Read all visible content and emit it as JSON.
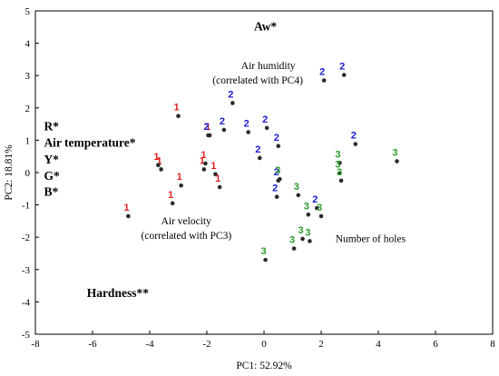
{
  "chart_data": {
    "type": "scatter",
    "xlabel": "PC1: 52.92%",
    "ylabel": "PC2: 18.81%",
    "xlim": [
      -8,
      8
    ],
    "ylim": [
      -5,
      5
    ],
    "x_ticks": [
      "-8",
      "-6",
      "-4",
      "-2",
      "0",
      "2",
      "4",
      "6",
      "8"
    ],
    "y_ticks": [
      "-5",
      "-4",
      "-3",
      "-2",
      "-1",
      "0",
      "1",
      "2",
      "3",
      "4",
      "5"
    ],
    "grid": false,
    "point_color": "#2b2b2b",
    "group_colors": {
      "1": "#e02020",
      "2": "#1a1ad0",
      "3": "#2a9a2a"
    },
    "points": [
      {
        "x": -4.75,
        "y": -1.35,
        "label": "1"
      },
      {
        "x": -3.6,
        "y": 0.1,
        "label": "1"
      },
      {
        "x": -3.7,
        "y": 0.23,
        "label": "1"
      },
      {
        "x": -3.2,
        "y": -0.95,
        "label": "1"
      },
      {
        "x": -2.9,
        "y": -0.4,
        "label": "1"
      },
      {
        "x": -3.0,
        "y": 1.75,
        "label": "1"
      },
      {
        "x": -2.1,
        "y": 0.1,
        "label": "1"
      },
      {
        "x": -2.05,
        "y": 0.28,
        "label": "1"
      },
      {
        "x": -1.9,
        "y": 1.15,
        "label": "1"
      },
      {
        "x": -1.7,
        "y": -0.05,
        "label": "1"
      },
      {
        "x": -1.55,
        "y": -0.45,
        "label": "1"
      },
      {
        "x": -1.95,
        "y": 1.15,
        "label": "2"
      },
      {
        "x": -1.4,
        "y": 1.32,
        "label": "2"
      },
      {
        "x": -1.1,
        "y": 2.15,
        "label": "2"
      },
      {
        "x": -0.55,
        "y": 1.25,
        "label": "2"
      },
      {
        "x": -0.15,
        "y": 0.45,
        "label": "2"
      },
      {
        "x": 0.1,
        "y": 1.38,
        "label": "2"
      },
      {
        "x": 0.5,
        "y": 0.82,
        "label": "2"
      },
      {
        "x": 0.5,
        "y": -0.25,
        "label": "2"
      },
      {
        "x": 0.45,
        "y": -0.75,
        "label": "2"
      },
      {
        "x": 2.1,
        "y": 2.85,
        "label": "2"
      },
      {
        "x": 2.8,
        "y": 3.02,
        "label": "2"
      },
      {
        "x": 3.2,
        "y": 0.88,
        "label": "2"
      },
      {
        "x": 1.85,
        "y": -1.1,
        "label": "2"
      },
      {
        "x": 0.55,
        "y": -0.2,
        "label": "3"
      },
      {
        "x": 1.2,
        "y": -0.7,
        "label": "3"
      },
      {
        "x": 1.55,
        "y": -1.3,
        "label": "3"
      },
      {
        "x": 2.0,
        "y": -1.35,
        "label": "3"
      },
      {
        "x": 1.35,
        "y": -2.05,
        "label": "3"
      },
      {
        "x": 1.6,
        "y": -2.12,
        "label": "3"
      },
      {
        "x": 1.05,
        "y": -2.35,
        "label": "3"
      },
      {
        "x": 0.05,
        "y": -2.7,
        "label": "3"
      },
      {
        "x": 2.65,
        "y": 0.3,
        "label": "3"
      },
      {
        "x": 2.65,
        "y": -0.02,
        "label": "3"
      },
      {
        "x": 2.7,
        "y": -0.25,
        "label": "3"
      },
      {
        "x": 4.65,
        "y": 0.35,
        "label": "3"
      }
    ],
    "annotations": [
      {
        "text": "Aw*",
        "x": 0.05,
        "y": 4.4,
        "style": "bold",
        "anchor": "middle"
      },
      {
        "text": "Air humidity",
        "x": -0.8,
        "y": 3.2,
        "style": "note",
        "anchor": "start"
      },
      {
        "text": "(correlated with PC4)",
        "x": -1.8,
        "y": 2.75,
        "style": "note",
        "anchor": "start"
      },
      {
        "text": "R*",
        "x": -7.7,
        "y": 1.3,
        "style": "bold",
        "anchor": "start"
      },
      {
        "text": "Air temperature*",
        "x": -7.7,
        "y": 0.8,
        "style": "bold",
        "anchor": "start"
      },
      {
        "text": "Y*",
        "x": -7.7,
        "y": 0.28,
        "style": "bold",
        "anchor": "start"
      },
      {
        "text": "G*",
        "x": -7.7,
        "y": -0.22,
        "style": "bold",
        "anchor": "start"
      },
      {
        "text": "B*",
        "x": -7.7,
        "y": -0.72,
        "style": "bold",
        "anchor": "start"
      },
      {
        "text": "Air velocity",
        "x": -3.6,
        "y": -1.6,
        "style": "note",
        "anchor": "start"
      },
      {
        "text": "(correlated with PC3)",
        "x": -4.3,
        "y": -2.05,
        "style": "note",
        "anchor": "start"
      },
      {
        "text": "Number of holes",
        "x": 2.5,
        "y": -2.15,
        "style": "note",
        "anchor": "start"
      },
      {
        "text": "Hardness**",
        "x": -6.2,
        "y": -3.85,
        "style": "bold",
        "anchor": "start"
      }
    ]
  }
}
